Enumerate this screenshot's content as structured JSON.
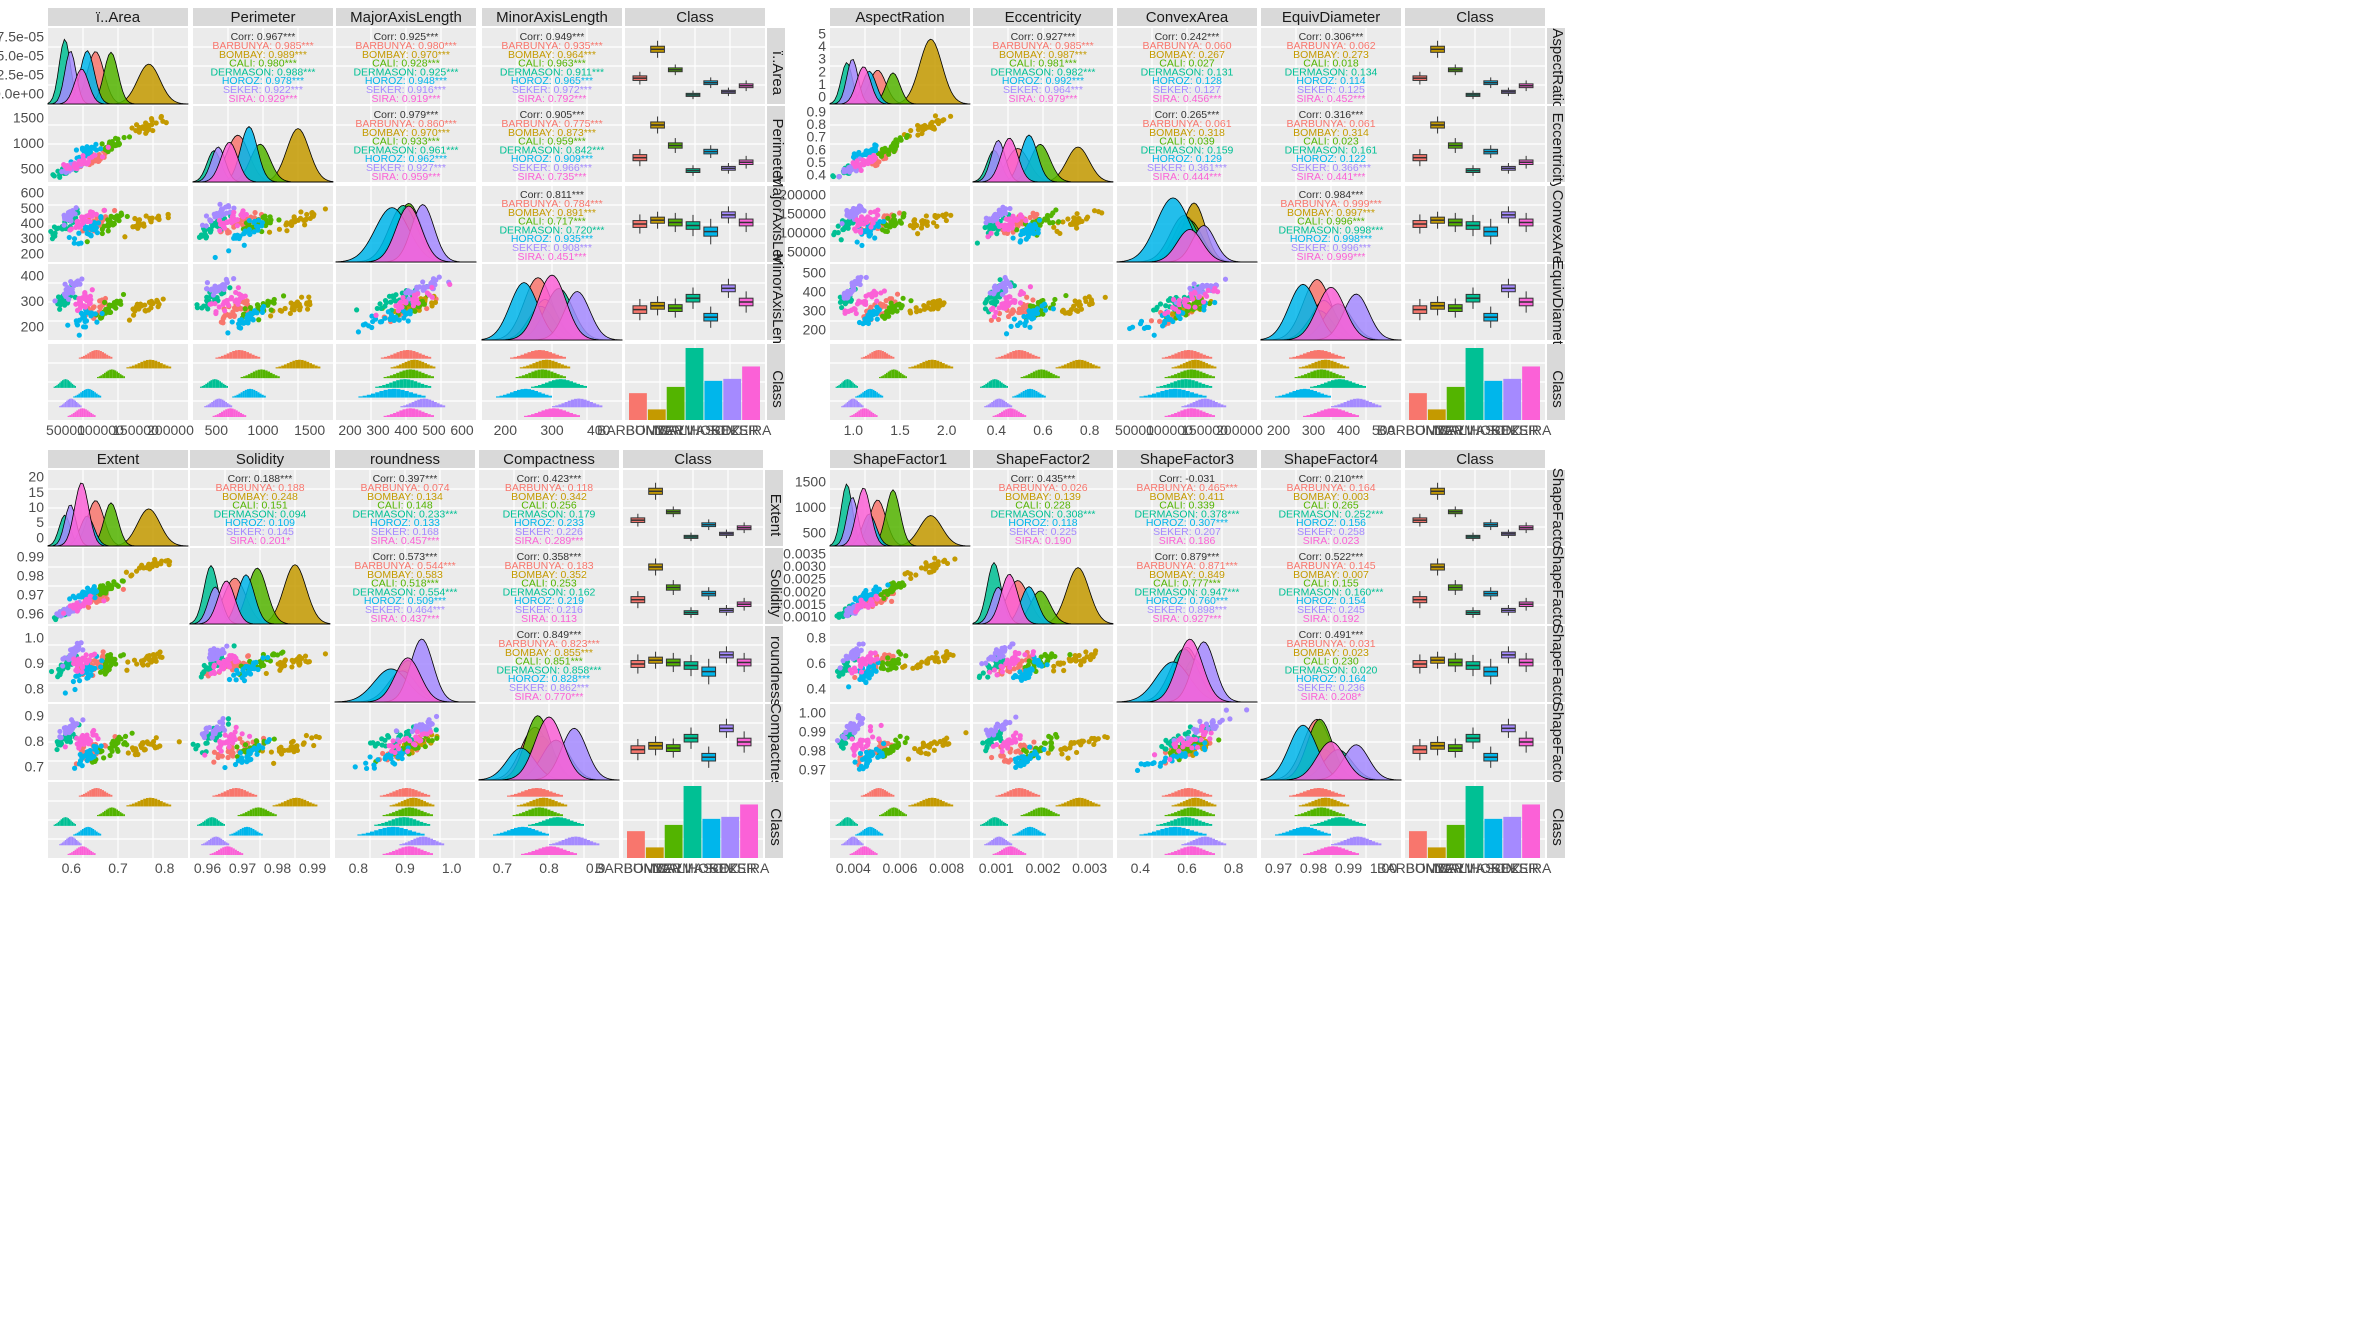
{
  "chart_data": {
    "type": "scatter",
    "title": "",
    "classes": [
      "BARBUNYA",
      "BOMBAY",
      "CALI",
      "DERMASON",
      "HOROZ",
      "SEKER",
      "SIRA"
    ],
    "class_colors": {
      "BARBUNYA": "#F8766D",
      "BOMBAY": "#C49A00",
      "CALI": "#53B400",
      "DERMASON": "#00C094",
      "HOROZ": "#00B6EB",
      "SEKER": "#A58AFF",
      "SIRA": "#FB61D7"
    },
    "class_counts": {
      "BARBUNYA": 1322,
      "BOMBAY": 522,
      "CALI": 1630,
      "DERMASON": 3546,
      "HOROZ": 1928,
      "SEKER": 2027,
      "SIRA": 2636
    },
    "class_axis_labels": [
      "BARBUNYA",
      "BOMBAY",
      "CALI",
      "DERMASON",
      "HOROZ",
      "SEKER",
      "SIRA"
    ],
    "panels": [
      {
        "variables": [
          "ï..Area",
          "Perimeter",
          "MajorAxisLength",
          "MinorAxisLength",
          "Class"
        ],
        "corr_total": [
          [
            "0.967***",
            "0.925***",
            "0.949***"
          ],
          [
            "0.979***",
            "0.905***"
          ],
          [
            "0.811***"
          ]
        ],
        "corr_by_class": [
          [
            "0.985***",
            "0.989***",
            "0.980***",
            "0.988***",
            "0.978***",
            "0.922***",
            "0.929***"
          ],
          [
            "0.980***",
            "0.970***",
            "0.928***",
            "0.925***",
            "0.948***",
            "0.916***",
            "0.919***"
          ],
          [
            "0.935***",
            "0.964***",
            "0.963***",
            "0.911***",
            "0.965***",
            "0.972***",
            "0.792***"
          ],
          [
            "0.860***",
            "0.970***",
            "0.933***",
            "0.961***",
            "0.962***",
            "0.927***",
            "0.959***"
          ],
          [
            "0.775***",
            "0.873***",
            "0.959***",
            "0.842***",
            "0.909***",
            "0.966***",
            "0.735***"
          ],
          [
            "0.784***",
            "0.891***",
            "0.717***",
            "0.720***",
            "0.935***",
            "0.908***",
            "0.451***"
          ]
        ],
        "x_ticks": [
          [
            "50000",
            "100000",
            "150000",
            "200000"
          ],
          [
            "500",
            "1000",
            "1500"
          ],
          [
            "200",
            "300",
            "400",
            "500",
            "600"
          ],
          [
            "200",
            "300",
            "400"
          ],
          [
            "BARBUNYA",
            "BOMBAY",
            "CALI",
            "DERMASON",
            "HOROZ",
            "SEKER",
            "SIRA"
          ]
        ],
        "y_ticks": [
          [
            "0.0e+00",
            "2.5e-05",
            "5.0e-05",
            "7.5e-05"
          ],
          [
            "500",
            "1000",
            "1500"
          ],
          [
            "200",
            "300",
            "400",
            "500",
            "600"
          ],
          [
            "200",
            "300",
            "400"
          ],
          []
        ],
        "ranges": [
          [
            20000,
            260000
          ],
          [
            500,
            1850
          ],
          [
            180,
            700
          ],
          [
            140,
            460
          ]
        ]
      },
      {
        "variables": [
          "AspectRation",
          "Eccentricity",
          "ConvexArea",
          "EquivDiameter",
          "Class"
        ],
        "corr_total": [
          [
            "0.927***",
            "0.242***",
            "0.306***"
          ],
          [
            "0.265***",
            "0.316***"
          ],
          [
            "0.984***"
          ]
        ],
        "corr_by_class": [
          [
            "0.985***",
            "0.987***",
            "0.981***",
            "0.982***",
            "0.992***",
            "0.964***",
            "0.979***"
          ],
          [
            "0.060",
            "0.267",
            "0.027",
            "0.131",
            "0.128",
            "0.127",
            "0.456***"
          ],
          [
            "0.062",
            "0.273",
            "0.018",
            "0.134",
            "0.114",
            "0.125",
            "0.452***"
          ],
          [
            "0.061",
            "0.318",
            "0.039",
            "0.159",
            "0.129",
            "0.361***",
            "0.444***"
          ],
          [
            "0.061",
            "0.314",
            "0.023",
            "0.161",
            "0.122",
            "0.366***",
            "0.441***"
          ],
          [
            "0.999***",
            "0.997***",
            "0.996***",
            "0.998***",
            "0.998***",
            "0.996***",
            "0.999***"
          ]
        ],
        "x_ticks": [
          [
            "1.0",
            "1.5",
            "2.0"
          ],
          [
            "0.4",
            "0.6",
            "0.8"
          ],
          [
            "50000",
            "100000",
            "150000",
            "200000"
          ],
          [
            "200",
            "300",
            "400",
            "500"
          ],
          [
            "BARBUNYA",
            "BOMBAY",
            "CALI",
            "DERMASON",
            "HOROZ",
            "SEKER",
            "SIRA"
          ]
        ],
        "y_ticks": [
          [
            "0",
            "1",
            "2",
            "3",
            "4",
            "5"
          ],
          [
            "0.4",
            "0.5",
            "0.6",
            "0.7",
            "0.8",
            "0.9"
          ],
          [
            "50000",
            "100000",
            "150000",
            "200000"
          ],
          [
            "200",
            "300",
            "400",
            "500"
          ],
          []
        ],
        "ranges": [
          [
            0.95,
            2.45
          ],
          [
            0.25,
            0.92
          ],
          [
            20000,
            260000
          ],
          [
            150,
            560
          ]
        ]
      },
      {
        "variables": [
          "Extent",
          "Solidity",
          "roundness",
          "Compactness",
          "Class"
        ],
        "corr_total": [
          [
            "0.188***",
            "0.397***",
            "0.423***"
          ],
          [
            "0.573***",
            "0.358***"
          ],
          [
            "0.849***"
          ]
        ],
        "corr_by_class": [
          [
            "0.188",
            "0.248",
            "0.151",
            "0.094",
            "0.109",
            "0.145",
            "0.201*"
          ],
          [
            "0.074",
            "0.134",
            "0.148",
            "0.233***",
            "0.133",
            "0.168",
            "0.457***"
          ],
          [
            "0.118",
            "0.342",
            "0.256",
            "0.179",
            "0.233",
            "0.226",
            "0.289***"
          ],
          [
            "0.544***",
            "0.583",
            "0.518***",
            "0.554***",
            "0.509***",
            "0.464***",
            "0.437***"
          ],
          [
            "0.183",
            "0.352",
            "0.253",
            "0.162",
            "0.219",
            "0.216",
            "0.113"
          ],
          [
            "0.823***",
            "0.855***",
            "0.851***",
            "0.858***",
            "0.828***",
            "0.862***",
            "0.770***"
          ]
        ],
        "x_ticks": [
          [
            "0.6",
            "0.7",
            "0.8"
          ],
          [
            "0.96",
            "0.97",
            "0.98",
            "0.99"
          ],
          [
            "0.8",
            "0.9",
            "1.0"
          ],
          [
            "0.7",
            "0.8",
            "0.9"
          ],
          [
            "BARBUNYA",
            "BOMBAY",
            "CALI",
            "DERMASON",
            "HOROZ",
            "SEKER",
            "SIRA"
          ]
        ],
        "y_ticks": [
          [
            "0",
            "5",
            "10",
            "15",
            "20"
          ],
          [
            "0.96",
            "0.97",
            "0.98",
            "0.99"
          ],
          [
            "0.8",
            "0.9",
            "1.0"
          ],
          [
            "0.7",
            "0.8",
            "0.9"
          ],
          []
        ],
        "ranges": [
          [
            0.54,
            0.86
          ],
          [
            0.95,
            0.995
          ],
          [
            0.72,
            1.0
          ],
          [
            0.64,
            0.97
          ]
        ]
      },
      {
        "variables": [
          "ShapeFactor1",
          "ShapeFactor2",
          "ShapeFactor3",
          "ShapeFactor4",
          "Class"
        ],
        "corr_total": [
          [
            "0.435***",
            "-0.031",
            "0.210***"
          ],
          [
            "0.879***",
            "0.522***"
          ],
          [
            "0.491***"
          ]
        ],
        "corr_by_class": [
          [
            "0.026",
            "0.139",
            "0.228",
            "0.308***",
            "0.118",
            "0.225",
            "0.190"
          ],
          [
            "0.465***",
            "0.411",
            "0.339",
            "0.378***",
            "0.307***",
            "0.207",
            "0.186"
          ],
          [
            "0.164",
            "0.003",
            "0.265",
            "0.252***",
            "0.156",
            "0.258",
            "0.023"
          ],
          [
            "0.871***",
            "0.849",
            "0.777***",
            "0.947***",
            "0.760***",
            "0.898***",
            "0.927***"
          ],
          [
            "0.145",
            "0.007",
            "0.155",
            "0.160***",
            "0.154",
            "0.245",
            "0.192"
          ],
          [
            "0.031",
            "0.023",
            "0.230",
            "0.020",
            "0.164",
            "0.236",
            "0.208*"
          ]
        ],
        "x_ticks": [
          [
            "0.004",
            "0.006",
            "0.008"
          ],
          [
            "0.001",
            "0.002",
            "0.003"
          ],
          [
            "0.4",
            "0.6",
            "0.8"
          ],
          [
            "0.97",
            "0.98",
            "0.99",
            "1.00"
          ],
          [
            "BARBUNYA",
            "BOMBAY",
            "CALI",
            "DERMASON",
            "HOROZ",
            "SEKER",
            "SIRA"
          ]
        ],
        "y_ticks": [
          [
            "500",
            "1000",
            "1500"
          ],
          [
            "0.0010",
            "0.0015",
            "0.0020",
            "0.0025",
            "0.0030",
            "0.0035"
          ],
          [
            "0.4",
            "0.6",
            "0.8"
          ],
          [
            "0.97",
            "0.98",
            "0.99",
            "1.00"
          ],
          []
        ],
        "ranges": [
          [
            0.0027,
            0.0094
          ],
          [
            0.0005,
            0.0037
          ],
          [
            0.38,
            0.98
          ],
          [
            0.96,
            1.003
          ]
        ]
      }
    ]
  }
}
